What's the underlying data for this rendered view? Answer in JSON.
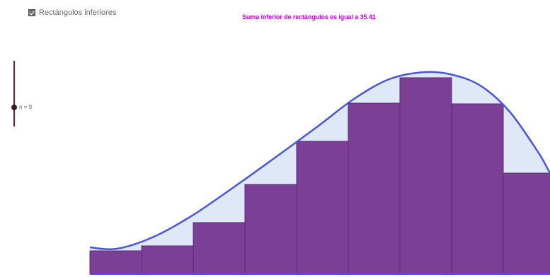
{
  "checkbox": {
    "label": "Rectángulos inferiores",
    "checked": true
  },
  "title": {
    "text": "Suma inferior de rectángulos es igual a 35.41",
    "color": "#cc00ff"
  },
  "slider": {
    "label": "n = 9",
    "value": 9,
    "color": "#7a1a32"
  },
  "colors": {
    "curve": "#4a55dd",
    "area_fill": "#dfe8f6",
    "rect_fill": "#7b3f96",
    "rect_stroke": "#5a2a78",
    "axis": "#4a55dd"
  }
}
